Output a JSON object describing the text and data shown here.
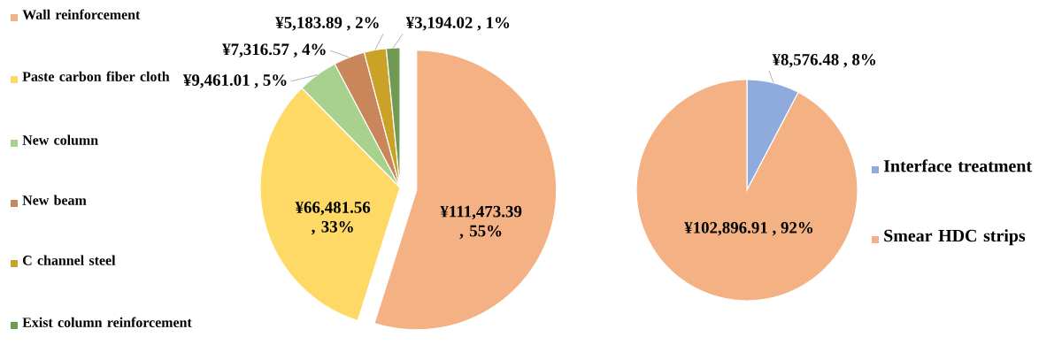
{
  "chart_data": [
    {
      "type": "pie",
      "categories": [
        "Wall reinforcement",
        "Paste carbon fiber cloth",
        "New column",
        "New beam",
        "C channel steel",
        "Exist column reinforcement"
      ],
      "values": [
        111473.39,
        66481.56,
        9461.01,
        7316.57,
        5183.89,
        3194.02
      ],
      "colors": [
        "#f4b183",
        "#ffd966",
        "#a9d18e",
        "#c9865a",
        "#c9a227",
        "#6f9a4f"
      ],
      "value_labels": [
        "¥111,473.39 , 55%",
        "¥66,481.56 , 33%",
        "¥9,461.01 , 5%",
        "¥7,316.57 , 4%",
        "¥5,183.89 , 2%",
        "¥3,194.02 , 1%"
      ],
      "legend": "left"
    },
    {
      "type": "pie",
      "categories": [
        "Interface treatment",
        "Smear HDC strips"
      ],
      "values": [
        8576.48,
        102896.91
      ],
      "colors": [
        "#8faadc",
        "#f4b183"
      ],
      "value_labels": [
        "¥8,576.48 , 8%",
        "¥102,896.91 , 92%"
      ],
      "legend": "right"
    }
  ]
}
